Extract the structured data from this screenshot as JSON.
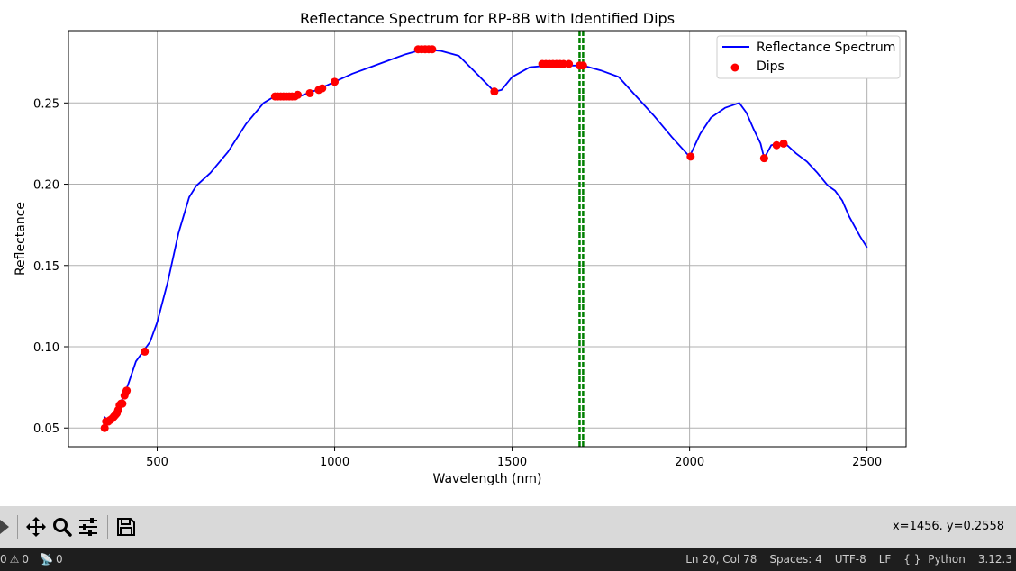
{
  "chart_data": {
    "type": "line",
    "title": "Reflectance Spectrum for RP-8B with Identified Dips",
    "xlabel": "Wavelength (nm)",
    "ylabel": "Reflectance",
    "xlim": [
      250,
      2610
    ],
    "ylim": [
      0.0385,
      0.2945
    ],
    "xticks": [
      500,
      1000,
      1500,
      2000,
      2500
    ],
    "yticks": [
      0.05,
      0.1,
      0.15,
      0.2,
      0.25
    ],
    "ytick_labels": [
      "0.05",
      "0.10",
      "0.15",
      "0.20",
      "0.25"
    ],
    "grid": true,
    "legend_position": "top-right",
    "legend": [
      "Reflectance Spectrum",
      "Dips"
    ],
    "series": [
      {
        "name": "Reflectance Spectrum",
        "color": "#0000ff",
        "x": [
          350,
          360,
          370,
          380,
          390,
          400,
          410,
          420,
          440,
          460,
          480,
          500,
          530,
          560,
          590,
          610,
          650,
          700,
          750,
          800,
          830,
          860,
          900,
          950,
          1000,
          1050,
          1100,
          1150,
          1200,
          1250,
          1300,
          1350,
          1400,
          1450,
          1470,
          1500,
          1550,
          1600,
          1650,
          1700,
          1750,
          1800,
          1850,
          1900,
          1950,
          2000,
          2030,
          2060,
          2100,
          2140,
          2160,
          2180,
          2200,
          2210,
          2230,
          2250,
          2270,
          2300,
          2330,
          2360,
          2390,
          2410,
          2430,
          2450,
          2480,
          2500
        ],
        "y": [
          0.057,
          0.055,
          0.056,
          0.058,
          0.062,
          0.067,
          0.072,
          0.078,
          0.091,
          0.097,
          0.103,
          0.115,
          0.14,
          0.17,
          0.192,
          0.199,
          0.207,
          0.22,
          0.237,
          0.25,
          0.254,
          0.254,
          0.254,
          0.258,
          0.263,
          0.268,
          0.272,
          0.276,
          0.28,
          0.283,
          0.282,
          0.279,
          0.268,
          0.257,
          0.258,
          0.266,
          0.272,
          0.273,
          0.273,
          0.273,
          0.27,
          0.266,
          0.254,
          0.242,
          0.229,
          0.217,
          0.231,
          0.241,
          0.247,
          0.25,
          0.244,
          0.234,
          0.225,
          0.216,
          0.224,
          0.225,
          0.225,
          0.219,
          0.214,
          0.207,
          0.199,
          0.196,
          0.19,
          0.18,
          0.168,
          0.161
        ]
      },
      {
        "name": "Dips",
        "type": "scatter",
        "color": "#ff0000",
        "x": [
          352,
          356,
          362,
          368,
          374,
          378,
          382,
          386,
          390,
          394,
          398,
          402,
          408,
          412,
          414,
          465,
          832,
          840,
          848,
          856,
          864,
          872,
          880,
          888,
          896,
          930,
          955,
          965,
          1000,
          1235,
          1245,
          1255,
          1265,
          1275,
          1450,
          1585,
          1595,
          1605,
          1615,
          1625,
          1635,
          1645,
          1660,
          1690,
          1700,
          2003,
          2210,
          2245,
          2265
        ],
        "y": [
          0.05,
          0.054,
          0.054,
          0.055,
          0.056,
          0.057,
          0.058,
          0.059,
          0.061,
          0.064,
          0.065,
          0.065,
          0.07,
          0.072,
          0.073,
          0.097,
          0.254,
          0.254,
          0.254,
          0.254,
          0.254,
          0.254,
          0.254,
          0.254,
          0.255,
          0.256,
          0.258,
          0.259,
          0.263,
          0.283,
          0.283,
          0.283,
          0.283,
          0.283,
          0.257,
          0.274,
          0.274,
          0.274,
          0.274,
          0.274,
          0.274,
          0.274,
          0.274,
          0.273,
          0.273,
          0.217,
          0.216,
          0.224,
          0.225
        ]
      }
    ],
    "vertical_lines": [
      {
        "x": 1690,
        "color": "#008000",
        "style": "dashed"
      },
      {
        "x": 1700,
        "color": "#008000",
        "style": "dashed"
      }
    ]
  },
  "toolbar": {
    "coordinates": "x=1456. y=0.2558"
  },
  "statusbar": {
    "errors": "0",
    "warnings": "0",
    "ports": "0",
    "position": "Ln 20, Col 78",
    "spaces": "Spaces: 4",
    "encoding": "UTF-8",
    "eol": "LF",
    "language": "Python",
    "version": "3.12.3"
  }
}
